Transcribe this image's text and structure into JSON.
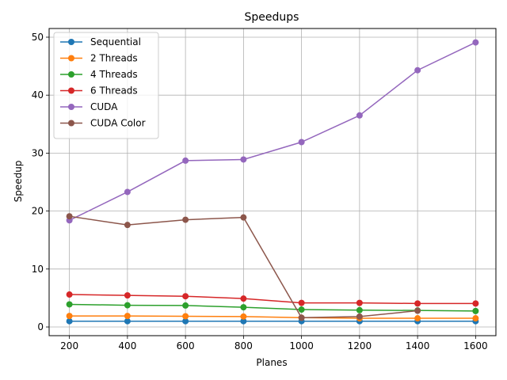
{
  "chart_data": {
    "type": "line",
    "title": "Speedups",
    "xlabel": "Planes",
    "ylabel": "Speedup",
    "x": [
      200,
      400,
      600,
      800,
      1000,
      1200,
      1400,
      1600
    ],
    "xlim": [
      130,
      1670
    ],
    "ylim": [
      -1.5,
      51.5
    ],
    "xticks": [
      200,
      400,
      600,
      800,
      1000,
      1200,
      1400,
      1600
    ],
    "yticks": [
      0,
      10,
      20,
      30,
      40,
      50
    ],
    "grid": true,
    "legend_position": "upper-left",
    "series": [
      {
        "name": "Sequential",
        "color": "#1f77b4",
        "values": [
          1.0,
          1.0,
          1.0,
          1.0,
          1.0,
          1.0,
          1.0,
          1.0
        ]
      },
      {
        "name": "2 Threads",
        "color": "#ff7f0e",
        "values": [
          1.9,
          1.9,
          1.85,
          1.8,
          1.6,
          1.5,
          1.5,
          1.5
        ]
      },
      {
        "name": "4 Threads",
        "color": "#2ca02c",
        "values": [
          3.9,
          3.75,
          3.7,
          3.4,
          3.0,
          2.9,
          2.85,
          2.75
        ]
      },
      {
        "name": "6 Threads",
        "color": "#d62728",
        "values": [
          5.6,
          5.45,
          5.3,
          4.9,
          4.15,
          4.15,
          4.05,
          4.05
        ]
      },
      {
        "name": "CUDA",
        "color": "#9467bd",
        "values": [
          18.4,
          23.3,
          28.7,
          28.9,
          31.9,
          36.5,
          44.3,
          49.1
        ]
      },
      {
        "name": "CUDA Color",
        "color": "#8c564b",
        "values": [
          19.1,
          17.6,
          18.5,
          18.9,
          1.6,
          1.8,
          2.8,
          null
        ]
      }
    ]
  }
}
